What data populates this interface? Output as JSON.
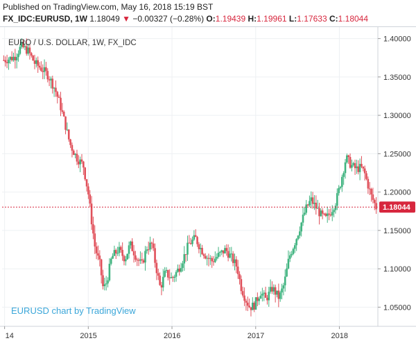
{
  "header": {
    "published": "Published on TradingView.com, May 16, 2018 15:19 BST",
    "symbol": "FX_IDC:EURUSD, 1W",
    "last": "1.18049",
    "change_arrow": "▼",
    "change": "−0.00327 (−0.28%)",
    "open_label": "O:",
    "open": "1.19439",
    "high_label": "H:",
    "high": "1.19961",
    "low_label": "L:",
    "low": "1.17633",
    "close_label": "C:",
    "close": "1.18044"
  },
  "chart_data": {
    "type": "candlestick",
    "title": "EURO / U.S. DOLLAR, 1W, FX_IDC",
    "watermark": "EURUSD chart by TradingView",
    "current_price_label": "1.18044",
    "current_price": 1.18044,
    "ylim": [
      1.025,
      1.415
    ],
    "yticks": [
      "1.40000",
      "1.35000",
      "1.30000",
      "1.25000",
      "1.20000",
      "1.15000",
      "1.10000",
      "1.05000"
    ],
    "ytick_values": [
      1.4,
      1.35,
      1.3,
      1.25,
      1.2,
      1.15,
      1.1,
      1.05
    ],
    "xlim": [
      2013.97,
      2018.46
    ],
    "xticks": [
      "14",
      "2015",
      "2016",
      "2017",
      "2018"
    ],
    "xtick_values": [
      2014.0,
      2015.0,
      2016.0,
      2017.0,
      2018.0
    ],
    "grid": true,
    "colors": {
      "up": "#3fb37f",
      "down": "#e0505a",
      "price_line": "#d7263d",
      "watermark": "#3aa6d9"
    },
    "close_path": [
      [
        2014.0,
        1.372
      ],
      [
        2014.12,
        1.376
      ],
      [
        2014.2,
        1.39
      ],
      [
        2014.28,
        1.384
      ],
      [
        2014.36,
        1.368
      ],
      [
        2014.45,
        1.36
      ],
      [
        2014.52,
        1.352
      ],
      [
        2014.6,
        1.335
      ],
      [
        2014.66,
        1.315
      ],
      [
        2014.72,
        1.29
      ],
      [
        2014.78,
        1.263
      ],
      [
        2014.86,
        1.245
      ],
      [
        2014.94,
        1.235
      ],
      [
        2015.0,
        1.198
      ],
      [
        2015.04,
        1.162
      ],
      [
        2015.08,
        1.128
      ],
      [
        2015.14,
        1.105
      ],
      [
        2015.18,
        1.073
      ],
      [
        2015.22,
        1.083
      ],
      [
        2015.28,
        1.115
      ],
      [
        2015.36,
        1.125
      ],
      [
        2015.44,
        1.113
      ],
      [
        2015.5,
        1.132
      ],
      [
        2015.58,
        1.114
      ],
      [
        2015.64,
        1.105
      ],
      [
        2015.7,
        1.128
      ],
      [
        2015.76,
        1.132
      ],
      [
        2015.8,
        1.108
      ],
      [
        2015.86,
        1.075
      ],
      [
        2015.92,
        1.095
      ],
      [
        2016.0,
        1.087
      ],
      [
        2016.08,
        1.1
      ],
      [
        2016.14,
        1.115
      ],
      [
        2016.2,
        1.132
      ],
      [
        2016.28,
        1.14
      ],
      [
        2016.34,
        1.127
      ],
      [
        2016.42,
        1.115
      ],
      [
        2016.48,
        1.11
      ],
      [
        2016.56,
        1.118
      ],
      [
        2016.64,
        1.125
      ],
      [
        2016.7,
        1.116
      ],
      [
        2016.78,
        1.102
      ],
      [
        2016.82,
        1.078
      ],
      [
        2016.88,
        1.06
      ],
      [
        2016.93,
        1.05
      ],
      [
        2016.98,
        1.052
      ],
      [
        2017.06,
        1.07
      ],
      [
        2017.12,
        1.06
      ],
      [
        2017.2,
        1.075
      ],
      [
        2017.28,
        1.062
      ],
      [
        2017.34,
        1.08
      ],
      [
        2017.4,
        1.115
      ],
      [
        2017.48,
        1.138
      ],
      [
        2017.54,
        1.158
      ],
      [
        2017.6,
        1.178
      ],
      [
        2017.66,
        1.19
      ],
      [
        2017.72,
        1.18
      ],
      [
        2017.78,
        1.17
      ],
      [
        2017.84,
        1.165
      ],
      [
        2017.9,
        1.175
      ],
      [
        2017.96,
        1.188
      ],
      [
        2018.0,
        1.205
      ],
      [
        2018.04,
        1.225
      ],
      [
        2018.08,
        1.245
      ],
      [
        2018.14,
        1.235
      ],
      [
        2018.2,
        1.23
      ],
      [
        2018.26,
        1.232
      ],
      [
        2018.3,
        1.225
      ],
      [
        2018.34,
        1.21
      ],
      [
        2018.38,
        1.195
      ],
      [
        2018.44,
        1.18
      ]
    ]
  }
}
